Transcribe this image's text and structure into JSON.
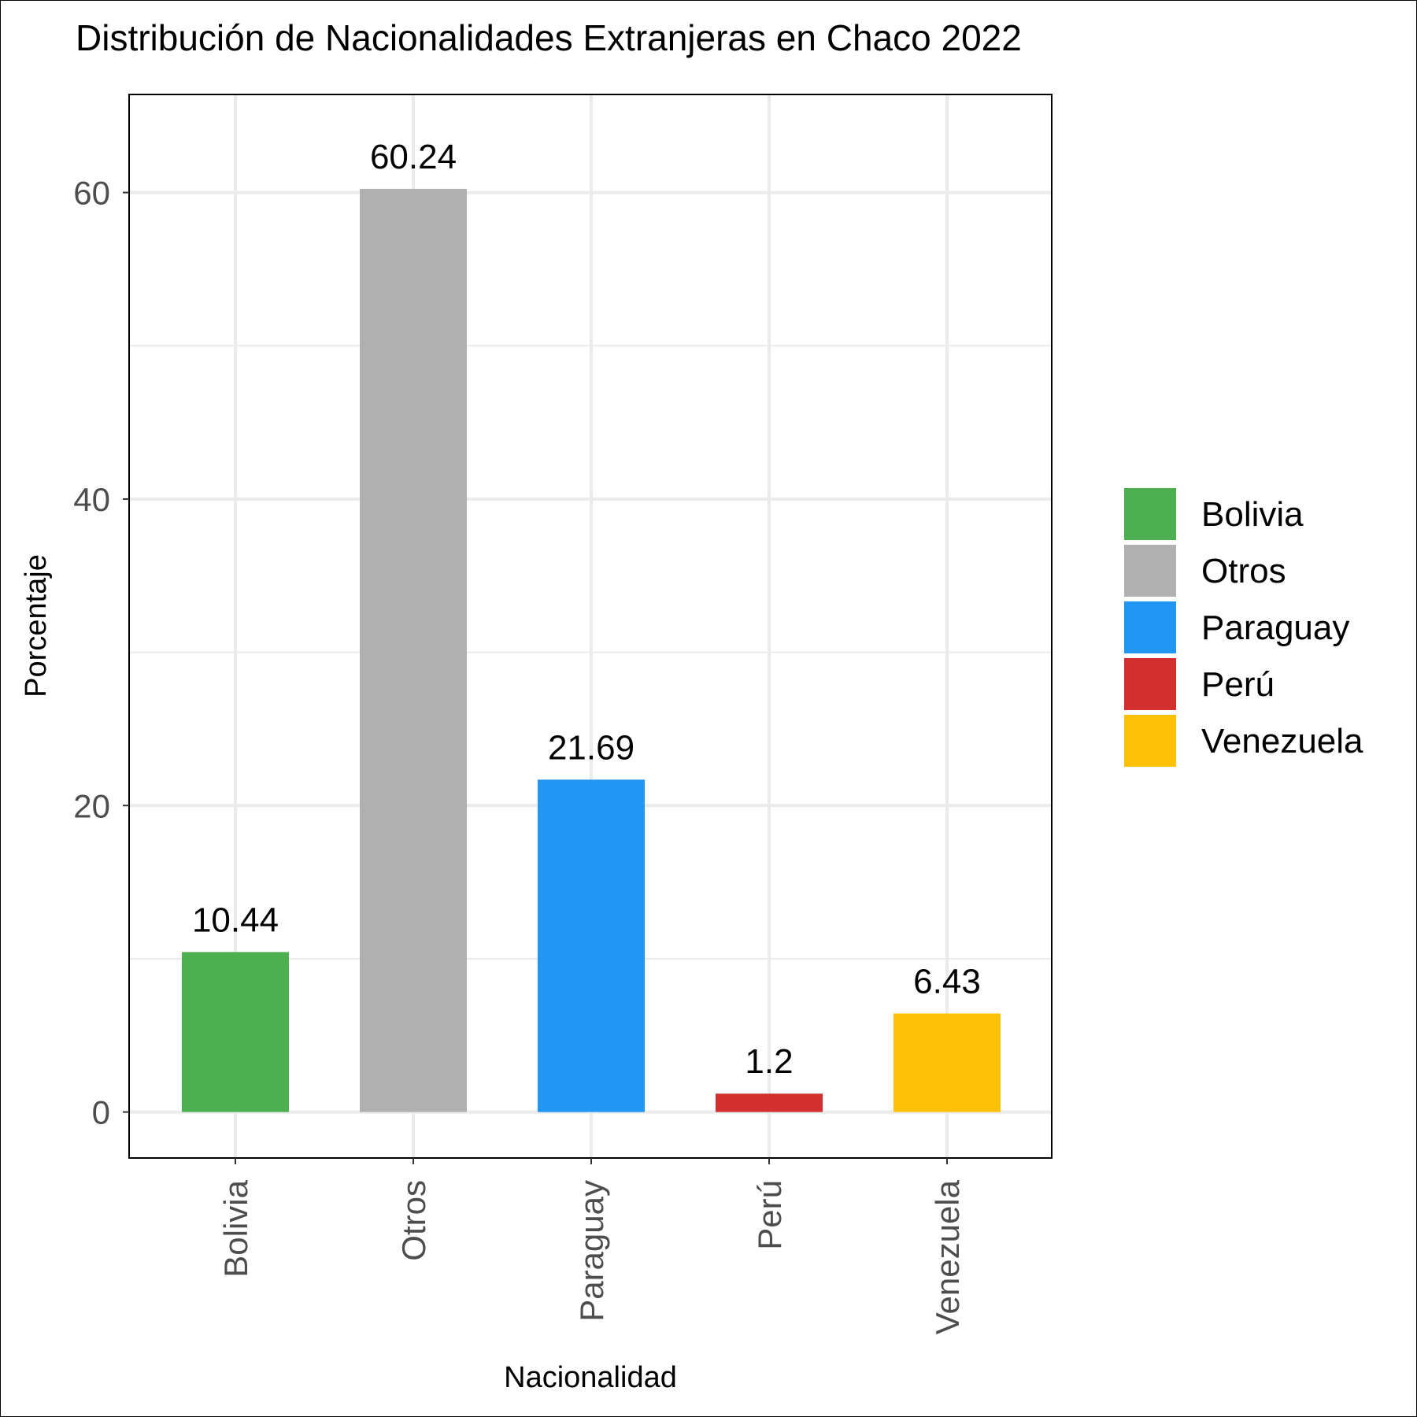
{
  "chart_data": {
    "type": "bar",
    "title": "Distribución de Nacionalidades Extranjeras en Chaco 2022",
    "xlabel": "Nacionalidad",
    "ylabel": "Porcentaje",
    "categories": [
      "Bolivia",
      "Otros",
      "Paraguay",
      "Perú",
      "Venezuela"
    ],
    "values": [
      10.44,
      60.24,
      21.69,
      1.2,
      6.43
    ],
    "data_labels": [
      "10.44",
      "60.24",
      "21.69",
      "1.2",
      "6.43"
    ],
    "colors": [
      "#4caf50",
      "#b0b0b0",
      "#2196f3",
      "#d32f2f",
      "#ffc107"
    ],
    "ylim": [
      -3,
      66.4
    ],
    "yticks": [
      0,
      20,
      40,
      60
    ],
    "yticks_minor": [
      10,
      30,
      50
    ],
    "ytick_labels": [
      "0",
      "20",
      "40",
      "60"
    ],
    "grid": true,
    "legend": {
      "position": "right",
      "entries": [
        "Bolivia",
        "Otros",
        "Paraguay",
        "Perú",
        "Venezuela"
      ]
    }
  }
}
